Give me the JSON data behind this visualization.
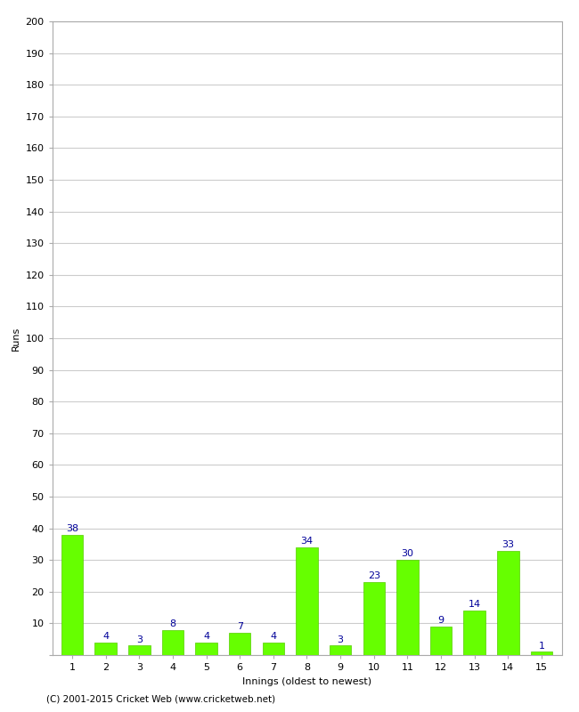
{
  "xlabel": "Innings (oldest to newest)",
  "ylabel": "Runs",
  "categories": [
    "1",
    "2",
    "3",
    "4",
    "5",
    "6",
    "7",
    "8",
    "9",
    "10",
    "11",
    "12",
    "13",
    "14",
    "15"
  ],
  "values": [
    38,
    4,
    3,
    8,
    4,
    7,
    4,
    34,
    3,
    23,
    30,
    9,
    14,
    33,
    1
  ],
  "bar_color": "#66ff00",
  "bar_edge_color": "#55cc00",
  "label_color": "#000099",
  "label_fontsize": 8,
  "axis_label_fontsize": 8,
  "tick_fontsize": 8,
  "ylim": [
    0,
    200
  ],
  "yticks": [
    0,
    10,
    20,
    30,
    40,
    50,
    60,
    70,
    80,
    90,
    100,
    110,
    120,
    130,
    140,
    150,
    160,
    170,
    180,
    190,
    200
  ],
  "grid_color": "#cccccc",
  "background_color": "#ffffff",
  "footer": "(C) 2001-2015 Cricket Web (www.cricketweb.net)",
  "footer_fontsize": 7.5,
  "outer_border_color": "#aaaaaa"
}
